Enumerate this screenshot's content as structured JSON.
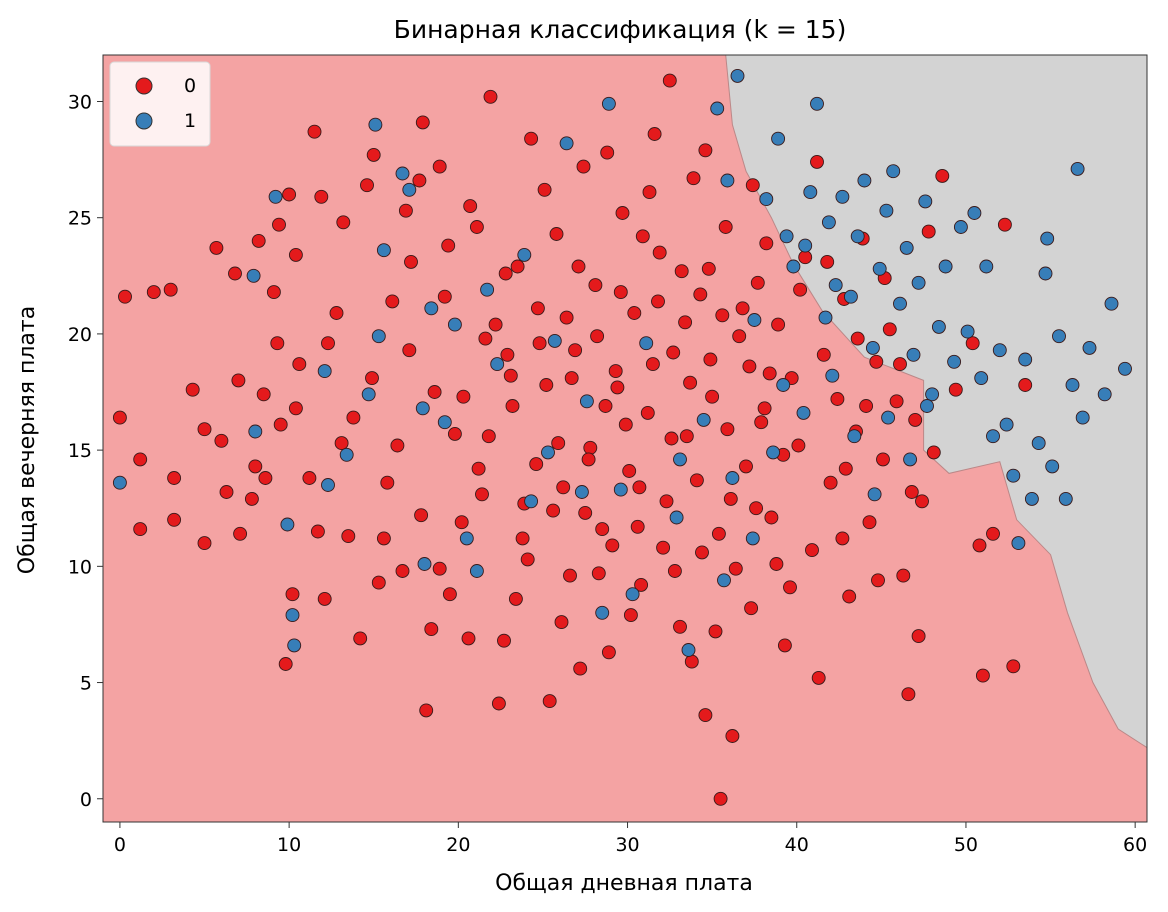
{
  "chart_data": {
    "type": "scatter",
    "title": "Бинарная классификация (k = 15)",
    "xlabel": "Общая дневная плата",
    "ylabel": "Общая вечерняя плата",
    "xlim": [
      -1,
      60.7
    ],
    "ylim": [
      -1,
      32
    ],
    "xticks": [
      0,
      10,
      20,
      30,
      40,
      50,
      60
    ],
    "yticks": [
      0,
      5,
      10,
      15,
      20,
      25,
      30
    ],
    "grid": false,
    "legend_placement": "top-left",
    "series": [
      {
        "name": "0",
        "color": "#e41a1c"
      },
      {
        "name": "1",
        "color": "#377eb8"
      }
    ],
    "decision_regions": {
      "class_0_color": "#f4a3a3",
      "class_1_color": "#d3d3d3",
      "boundary_class1_region": [
        [
          35.8,
          32
        ],
        [
          36.2,
          29
        ],
        [
          37,
          27
        ],
        [
          38.5,
          25
        ],
        [
          39.8,
          23
        ],
        [
          41.5,
          21
        ],
        [
          44,
          19
        ],
        [
          47.5,
          18
        ],
        [
          47.5,
          15
        ],
        [
          49,
          14
        ],
        [
          52,
          14.5
        ],
        [
          53,
          12
        ],
        [
          55,
          10.5
        ],
        [
          56,
          8
        ],
        [
          57.5,
          5
        ],
        [
          59,
          3
        ],
        [
          60.7,
          2.2
        ],
        [
          60.7,
          32
        ]
      ]
    },
    "points_0": [
      [
        0,
        16.4
      ],
      [
        0.3,
        21.6
      ],
      [
        1.2,
        14.6
      ],
      [
        1.2,
        11.6
      ],
      [
        2,
        21.8
      ],
      [
        3,
        21.9
      ],
      [
        3.2,
        13.8
      ],
      [
        3.2,
        12
      ],
      [
        4.3,
        17.6
      ],
      [
        5,
        15.9
      ],
      [
        5,
        11
      ],
      [
        5.7,
        23.7
      ],
      [
        6,
        15.4
      ],
      [
        6.3,
        13.2
      ],
      [
        6.8,
        22.6
      ],
      [
        7,
        18
      ],
      [
        7.1,
        11.4
      ],
      [
        7.8,
        12.9
      ],
      [
        8,
        14.3
      ],
      [
        8.2,
        24
      ],
      [
        8.5,
        17.4
      ],
      [
        8.6,
        13.8
      ],
      [
        9.1,
        21.8
      ],
      [
        9.4,
        24.7
      ],
      [
        9.5,
        16.1
      ],
      [
        9.8,
        5.8
      ],
      [
        10,
        26
      ],
      [
        10.2,
        8.8
      ],
      [
        10.4,
        23.4
      ],
      [
        10.6,
        18.7
      ],
      [
        11.5,
        28.7
      ],
      [
        11.7,
        11.5
      ],
      [
        11.9,
        25.9
      ],
      [
        12.3,
        19.6
      ],
      [
        13.2,
        24.8
      ],
      [
        13.5,
        11.3
      ],
      [
        14.2,
        6.9
      ],
      [
        14.6,
        26.4
      ],
      [
        15,
        27.7
      ],
      [
        15.3,
        9.3
      ],
      [
        16.1,
        21.4
      ],
      [
        16.9,
        25.3
      ],
      [
        17.2,
        23.1
      ],
      [
        17.7,
        26.6
      ],
      [
        17.9,
        29.1
      ],
      [
        18.1,
        3.8
      ],
      [
        18.4,
        7.3
      ],
      [
        18.9,
        27.2
      ],
      [
        19.5,
        8.8
      ],
      [
        19.8,
        15.7
      ],
      [
        20.2,
        11.9
      ],
      [
        20.7,
        25.5
      ],
      [
        21.2,
        14.2
      ],
      [
        21.6,
        19.8
      ],
      [
        21.9,
        30.2
      ],
      [
        22.4,
        4.1
      ],
      [
        22.8,
        22.6
      ],
      [
        23.2,
        16.9
      ],
      [
        23.4,
        8.6
      ],
      [
        23.9,
        12.7
      ],
      [
        24.3,
        28.4
      ],
      [
        24.7,
        21.1
      ],
      [
        25.2,
        17.8
      ],
      [
        25.4,
        4.2
      ],
      [
        25.8,
        24.3
      ],
      [
        26.2,
        13.4
      ],
      [
        26.6,
        9.6
      ],
      [
        26.9,
        19.3
      ],
      [
        27.4,
        27.2
      ],
      [
        27.8,
        15.1
      ],
      [
        28.1,
        22.1
      ],
      [
        28.5,
        11.6
      ],
      [
        28.9,
        6.3
      ],
      [
        29.3,
        18.4
      ],
      [
        29.7,
        25.2
      ],
      [
        30.1,
        14.1
      ],
      [
        30.4,
        20.9
      ],
      [
        30.8,
        9.2
      ],
      [
        31.2,
        16.6
      ],
      [
        31.6,
        28.6
      ],
      [
        31.9,
        23.5
      ],
      [
        32.3,
        12.8
      ],
      [
        32.5,
        30.9
      ],
      [
        32.7,
        19.2
      ],
      [
        33.1,
        7.4
      ],
      [
        33.5,
        15.6
      ],
      [
        33.9,
        26.7
      ],
      [
        34.3,
        21.7
      ],
      [
        34.6,
        3.6
      ],
      [
        35,
        17.3
      ],
      [
        35.4,
        11.4
      ],
      [
        35.5,
        0
      ],
      [
        35.8,
        24.6
      ],
      [
        36.2,
        2.7
      ],
      [
        36.6,
        19.9
      ],
      [
        37,
        14.3
      ],
      [
        37.3,
        8.2
      ],
      [
        37.7,
        22.2
      ],
      [
        38.1,
        16.8
      ],
      [
        38.5,
        12.1
      ],
      [
        38.9,
        20.4
      ],
      [
        39.3,
        6.6
      ],
      [
        39.7,
        18.1
      ],
      [
        40.1,
        15.2
      ],
      [
        40.5,
        23.3
      ],
      [
        40.9,
        10.7
      ],
      [
        41.2,
        27.4
      ],
      [
        41.3,
        5.2
      ],
      [
        41.6,
        19.1
      ],
      [
        42,
        13.6
      ],
      [
        42.4,
        17.2
      ],
      [
        42.8,
        21.5
      ],
      [
        43.1,
        8.7
      ],
      [
        43.5,
        15.8
      ],
      [
        43.9,
        24.1
      ],
      [
        44.3,
        11.9
      ],
      [
        44.7,
        18.8
      ],
      [
        45.1,
        14.6
      ],
      [
        45.5,
        20.2
      ],
      [
        45.9,
        17.1
      ],
      [
        46.3,
        9.6
      ],
      [
        46.6,
        4.5
      ],
      [
        47,
        16.3
      ],
      [
        47.2,
        7
      ],
      [
        47.4,
        12.8
      ],
      [
        47.8,
        24.4
      ],
      [
        48.6,
        26.8
      ],
      [
        50.4,
        19.6
      ],
      [
        50.8,
        10.9
      ],
      [
        51,
        5.3
      ],
      [
        51.6,
        11.4
      ],
      [
        52.3,
        24.7
      ],
      [
        52.8,
        5.7
      ],
      [
        53.5,
        17.8
      ],
      [
        23.1,
        18.2
      ],
      [
        24.6,
        14.4
      ],
      [
        26.4,
        20.7
      ],
      [
        27.5,
        12.3
      ],
      [
        28.7,
        16.9
      ],
      [
        29.6,
        21.8
      ],
      [
        30.7,
        13.4
      ],
      [
        31.5,
        18.7
      ],
      [
        32.6,
        15.5
      ],
      [
        33.4,
        20.5
      ],
      [
        34.1,
        13.7
      ],
      [
        34.9,
        18.9
      ],
      [
        35.9,
        15.9
      ],
      [
        36.8,
        21.1
      ],
      [
        37.6,
        12.5
      ],
      [
        38.4,
        18.3
      ],
      [
        39.2,
        14.8
      ],
      [
        20.3,
        17.3
      ],
      [
        21.4,
        13.1
      ],
      [
        22.2,
        20.4
      ],
      [
        24.1,
        10.3
      ],
      [
        25.9,
        15.3
      ],
      [
        27.1,
        22.9
      ],
      [
        28.3,
        9.7
      ],
      [
        29.4,
        17.7
      ],
      [
        30.9,
        24.2
      ],
      [
        32.1,
        10.8
      ],
      [
        33.7,
        17.9
      ],
      [
        34.8,
        22.8
      ],
      [
        36.4,
        9.9
      ],
      [
        37.9,
        16.2
      ],
      [
        16.4,
        15.2
      ],
      [
        17.1,
        19.3
      ],
      [
        17.8,
        12.2
      ],
      [
        18.6,
        17.5
      ],
      [
        19.2,
        21.6
      ],
      [
        15.8,
        13.6
      ],
      [
        14.9,
        18.1
      ],
      [
        13.8,
        16.4
      ],
      [
        12.8,
        20.9
      ],
      [
        22.7,
        6.8
      ],
      [
        27.2,
        5.6
      ],
      [
        30.2,
        7.9
      ],
      [
        33.8,
        5.9
      ],
      [
        39.6,
        9.1
      ],
      [
        42.7,
        11.2
      ],
      [
        44.8,
        9.4
      ],
      [
        25.1,
        26.2
      ],
      [
        28.8,
        27.8
      ],
      [
        31.3,
        26.1
      ],
      [
        34.6,
        27.9
      ],
      [
        37.4,
        26.4
      ],
      [
        23.5,
        22.9
      ],
      [
        21.1,
        24.6
      ],
      [
        19.4,
        23.8
      ],
      [
        26.1,
        7.6
      ],
      [
        35.2,
        7.2
      ],
      [
        38.8,
        10.1
      ],
      [
        12.1,
        8.6
      ],
      [
        13.1,
        15.3
      ],
      [
        11.2,
        13.8
      ],
      [
        10.4,
        16.8
      ],
      [
        9.3,
        19.6
      ],
      [
        18.9,
        9.9
      ],
      [
        16.7,
        9.8
      ],
      [
        15.6,
        11.2
      ],
      [
        20.6,
        6.9
      ],
      [
        42.9,
        14.2
      ],
      [
        44.1,
        16.9
      ],
      [
        46.8,
        13.2
      ],
      [
        48.1,
        14.9
      ],
      [
        49.4,
        17.6
      ],
      [
        43.6,
        19.8
      ],
      [
        45.2,
        22.4
      ],
      [
        46.1,
        18.7
      ],
      [
        38.2,
        23.9
      ],
      [
        40.2,
        21.9
      ],
      [
        41.8,
        23.1
      ],
      [
        23.8,
        11.2
      ],
      [
        25.6,
        12.4
      ],
      [
        27.7,
        14.6
      ],
      [
        29.1,
        10.9
      ],
      [
        30.6,
        11.7
      ],
      [
        32.8,
        9.8
      ],
      [
        34.4,
        10.6
      ],
      [
        36.1,
        12.9
      ],
      [
        24.8,
        19.6
      ],
      [
        26.7,
        18.1
      ],
      [
        28.2,
        19.9
      ],
      [
        29.9,
        16.1
      ],
      [
        31.8,
        21.4
      ],
      [
        33.2,
        22.7
      ],
      [
        35.6,
        20.8
      ],
      [
        37.2,
        18.6
      ],
      [
        21.8,
        15.6
      ],
      [
        22.9,
        19.1
      ]
    ],
    "points_1": [
      [
        0,
        13.6
      ],
      [
        7.9,
        22.5
      ],
      [
        8,
        15.8
      ],
      [
        9.2,
        25.9
      ],
      [
        9.9,
        11.8
      ],
      [
        10.2,
        7.9
      ],
      [
        10.3,
        6.6
      ],
      [
        12.1,
        18.4
      ],
      [
        12.3,
        13.5
      ],
      [
        15.1,
        29
      ],
      [
        15.3,
        19.9
      ],
      [
        15.6,
        23.6
      ],
      [
        16.7,
        26.9
      ],
      [
        17.1,
        26.2
      ],
      [
        18,
        10.1
      ],
      [
        19.2,
        16.2
      ],
      [
        20.5,
        11.2
      ],
      [
        22.3,
        18.7
      ],
      [
        26.4,
        28.2
      ],
      [
        28.5,
        8
      ],
      [
        28.9,
        29.9
      ],
      [
        33.6,
        6.4
      ],
      [
        35.3,
        29.7
      ],
      [
        35.9,
        26.6
      ],
      [
        36.5,
        31.1
      ],
      [
        37.5,
        20.6
      ],
      [
        38.2,
        25.8
      ],
      [
        38.9,
        28.4
      ],
      [
        39.4,
        24.2
      ],
      [
        39.8,
        22.9
      ],
      [
        40.5,
        23.8
      ],
      [
        40.8,
        26.1
      ],
      [
        41.2,
        29.9
      ],
      [
        41.7,
        20.7
      ],
      [
        41.9,
        24.8
      ],
      [
        42.3,
        22.1
      ],
      [
        42.7,
        25.9
      ],
      [
        43.2,
        21.6
      ],
      [
        43.6,
        24.2
      ],
      [
        44,
        26.6
      ],
      [
        44.5,
        19.4
      ],
      [
        44.9,
        22.8
      ],
      [
        45.3,
        25.3
      ],
      [
        45.7,
        27
      ],
      [
        46.1,
        21.3
      ],
      [
        46.5,
        23.7
      ],
      [
        46.9,
        19.1
      ],
      [
        47.2,
        22.2
      ],
      [
        47.6,
        25.7
      ],
      [
        48,
        17.4
      ],
      [
        48.4,
        20.3
      ],
      [
        48.8,
        22.9
      ],
      [
        49.3,
        18.8
      ],
      [
        49.7,
        24.6
      ],
      [
        50.1,
        20.1
      ],
      [
        50.5,
        25.2
      ],
      [
        50.9,
        18.1
      ],
      [
        51.2,
        22.9
      ],
      [
        51.6,
        15.6
      ],
      [
        52,
        19.3
      ],
      [
        52.4,
        16.1
      ],
      [
        52.8,
        13.9
      ],
      [
        53.1,
        11
      ],
      [
        53.5,
        18.9
      ],
      [
        53.9,
        12.9
      ],
      [
        54.3,
        15.3
      ],
      [
        54.7,
        22.6
      ],
      [
        54.8,
        24.1
      ],
      [
        55.1,
        14.3
      ],
      [
        55.5,
        19.9
      ],
      [
        55.9,
        12.9
      ],
      [
        56.3,
        17.8
      ],
      [
        56.6,
        27.1
      ],
      [
        56.9,
        16.4
      ],
      [
        57.3,
        19.4
      ],
      [
        58.2,
        17.4
      ],
      [
        58.6,
        21.3
      ],
      [
        59.4,
        18.5
      ],
      [
        25.3,
        14.9
      ],
      [
        27.6,
        17.1
      ],
      [
        29.6,
        13.3
      ],
      [
        31.1,
        19.6
      ],
      [
        33.1,
        14.6
      ],
      [
        34.5,
        16.3
      ],
      [
        36.2,
        13.8
      ],
      [
        37.4,
        11.2
      ],
      [
        38.6,
        14.9
      ],
      [
        39.2,
        17.8
      ],
      [
        40.4,
        16.6
      ],
      [
        42.1,
        18.2
      ],
      [
        43.4,
        15.6
      ],
      [
        44.6,
        13.1
      ],
      [
        45.4,
        16.4
      ],
      [
        46.7,
        14.6
      ],
      [
        47.7,
        16.9
      ],
      [
        21.7,
        21.9
      ],
      [
        23.9,
        23.4
      ],
      [
        25.7,
        19.7
      ],
      [
        19.8,
        20.4
      ],
      [
        17.9,
        16.8
      ],
      [
        18.4,
        21.1
      ],
      [
        14.7,
        17.4
      ],
      [
        13.4,
        14.8
      ],
      [
        21.1,
        9.8
      ],
      [
        24.3,
        12.8
      ],
      [
        27.3,
        13.2
      ],
      [
        30.3,
        8.8
      ],
      [
        32.9,
        12.1
      ],
      [
        35.7,
        9.4
      ]
    ]
  }
}
